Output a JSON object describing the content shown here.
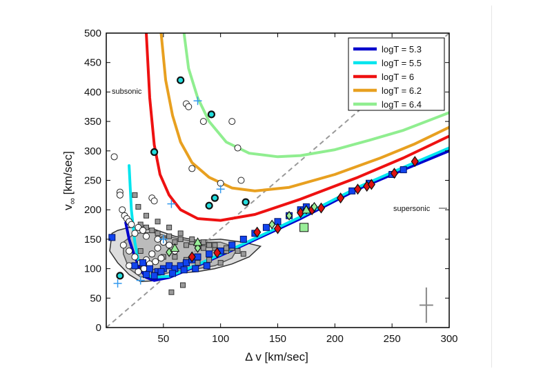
{
  "chart_data": {
    "type": "scatter",
    "title": "",
    "xlabel": "Δ v [km/sec]",
    "ylabel_main": "v",
    "ylabel_sub": "∞",
    "ylabel_unit": " [km/sec]",
    "xlim": [
      0,
      300
    ],
    "ylim": [
      0,
      500
    ],
    "xticks": [
      "50",
      "100",
      "150",
      "200",
      "250",
      "300"
    ],
    "yticks": [
      "0",
      "50",
      "100",
      "150",
      "200",
      "250",
      "300",
      "350",
      "400",
      "450",
      "500"
    ],
    "grid": false,
    "legend_position": "top-right",
    "annotations": {
      "subsonic": "subsonic",
      "supersonic": "supersonic"
    },
    "diagonal_line": {
      "style": "dashed",
      "color": "#999999",
      "x": [
        0,
        300
      ],
      "y": [
        0,
        500
      ]
    },
    "series": [
      {
        "name": "logT = 5.3",
        "color": "#0000cc",
        "x": [
          17,
          20,
          25,
          30,
          35,
          42,
          55,
          80,
          120,
          170,
          220,
          260,
          300
        ],
        "y": [
          178,
          150,
          120,
          98,
          85,
          80,
          85,
          105,
          140,
          185,
          235,
          268,
          300
        ]
      },
      {
        "name": "logT = 5.5",
        "color": "#00e5ee",
        "x": [
          20,
          22,
          25,
          28,
          33,
          40,
          55,
          80,
          120,
          170,
          220,
          260,
          300
        ],
        "y": [
          275,
          200,
          145,
          115,
          95,
          85,
          87,
          107,
          142,
          188,
          238,
          272,
          305
        ]
      },
      {
        "name": "logT = 6",
        "color": "#ee1111",
        "x": [
          35,
          38,
          42,
          47,
          55,
          65,
          80,
          100,
          130,
          170,
          220,
          260,
          300
        ],
        "y": [
          500,
          390,
          310,
          260,
          225,
          200,
          185,
          182,
          192,
          218,
          255,
          288,
          325
        ]
      },
      {
        "name": "logT = 6.2",
        "color": "#e8a020",
        "x": [
          48,
          52,
          58,
          65,
          75,
          90,
          110,
          130,
          160,
          200,
          240,
          270,
          300
        ],
        "y": [
          500,
          420,
          360,
          315,
          280,
          255,
          237,
          232,
          238,
          260,
          288,
          312,
          340
        ]
      },
      {
        "name": "logT = 6.4",
        "color": "#90ee90",
        "x": [
          68,
          72,
          80,
          90,
          105,
          125,
          150,
          170,
          200,
          230,
          260,
          300
        ],
        "y": [
          500,
          440,
          390,
          350,
          315,
          296,
          290,
          292,
          302,
          318,
          335,
          365
        ]
      }
    ],
    "contours": [
      {
        "fill": "#dddddd",
        "stroke": "#333333",
        "x": [
          3,
          5,
          10,
          20,
          40,
          60,
          80,
          100,
          120,
          135,
          125,
          110,
          95,
          80,
          60,
          45,
          30,
          20,
          10,
          3
        ],
        "y": [
          130,
          160,
          165,
          170,
          168,
          155,
          148,
          150,
          145,
          138,
          120,
          108,
          100,
          95,
          92,
          80,
          78,
          90,
          110,
          130
        ]
      },
      {
        "fill": "#bbbbbb",
        "stroke": "#555555",
        "x": [
          15,
          25,
          40,
          60,
          80,
          100,
          115,
          110,
          95,
          80,
          60,
          45,
          30,
          20,
          15
        ],
        "y": [
          145,
          160,
          162,
          152,
          145,
          145,
          135,
          118,
          105,
          100,
          96,
          88,
          86,
          100,
          125
        ]
      }
    ],
    "markers": {
      "open_circles": {
        "color": "#ffffff",
        "stroke": "#222222",
        "x": [
          7,
          12,
          12,
          14,
          16,
          18,
          20,
          22,
          25,
          28,
          32,
          35,
          40,
          42,
          45,
          50,
          55,
          60,
          70,
          72,
          75,
          85,
          100,
          110,
          115,
          118,
          15,
          20,
          25,
          30,
          35,
          40,
          45,
          20,
          28,
          33,
          38,
          43,
          48
        ],
        "y": [
          290,
          230,
          225,
          200,
          190,
          185,
          180,
          175,
          160,
          170,
          165,
          155,
          220,
          215,
          150,
          145,
          140,
          130,
          380,
          375,
          270,
          350,
          245,
          350,
          305,
          250,
          140,
          130,
          120,
          110,
          115,
          125,
          135,
          105,
          95,
          100,
          108,
          112,
          118
        ]
      },
      "cyan_circles": {
        "color": "#22dddd",
        "stroke": "#111111",
        "x": [
          12,
          42,
          65,
          92,
          90,
          95,
          122
        ],
        "y": [
          88,
          298,
          420,
          362,
          207,
          220,
          213
        ]
      },
      "gray_squares": {
        "color": "#999999",
        "stroke": "#333333",
        "x": [
          25,
          30,
          35,
          40,
          45,
          50,
          55,
          60,
          65,
          70,
          75,
          80,
          85,
          90,
          95,
          100,
          105,
          110,
          115,
          120,
          30,
          40,
          50,
          60,
          70,
          80,
          90,
          100,
          28,
          35,
          45,
          55,
          65,
          75,
          85,
          95,
          105,
          57,
          67,
          32,
          42
        ],
        "y": [
          225,
          175,
          170,
          165,
          160,
          150,
          155,
          145,
          150,
          140,
          145,
          140,
          135,
          140,
          135,
          130,
          130,
          135,
          130,
          125,
          130,
          125,
          120,
          120,
          115,
          110,
          115,
          110,
          205,
          190,
          180,
          170,
          160,
          150,
          145,
          140,
          135,
          60,
          72,
          100,
          95
        ]
      },
      "blue_squares": {
        "color": "#1144ee",
        "stroke": "#001166",
        "x": [
          5,
          25,
          32,
          38,
          45,
          50,
          55,
          60,
          65,
          70,
          75,
          80,
          90,
          100,
          110,
          120,
          130,
          140,
          150,
          160,
          170,
          175,
          215,
          230,
          250,
          260,
          35,
          42,
          48,
          58,
          68,
          78,
          88
        ],
        "y": [
          153,
          105,
          110,
          100,
          95,
          100,
          105,
          100,
          105,
          110,
          115,
          120,
          125,
          130,
          140,
          150,
          160,
          170,
          180,
          190,
          200,
          205,
          232,
          245,
          260,
          268,
          90,
          88,
          95,
          92,
          98,
          100,
          105
        ]
      },
      "red_diamonds": {
        "color": "#dd1111",
        "stroke": "#111111",
        "x": [
          75,
          97,
          132,
          150,
          170,
          180,
          188,
          205,
          220,
          228,
          232,
          252,
          270
        ],
        "y": [
          120,
          127,
          162,
          168,
          195,
          200,
          203,
          220,
          235,
          240,
          243,
          262,
          282
        ]
      },
      "green_diamonds": {
        "color": "#99ee99",
        "stroke": "#111111",
        "x": [
          55,
          80,
          145,
          160,
          175,
          182
        ],
        "y": [
          128,
          135,
          175,
          190,
          200,
          205
        ]
      },
      "green_triangles": {
        "color": "#99ee99",
        "stroke": "#111111",
        "x": [
          60,
          80,
          175
        ],
        "y": [
          135,
          145,
          200
        ]
      },
      "green_squares": {
        "color": "#99ee99",
        "stroke": "#111111",
        "x": [
          173
        ],
        "y": [
          170
        ]
      },
      "plus_signs": {
        "color": "#3399ee",
        "x": [
          10,
          30,
          50,
          57,
          80,
          100
        ],
        "y": [
          75,
          80,
          150,
          210,
          385,
          235
        ]
      }
    },
    "error_cross": {
      "x": 280,
      "y": 38,
      "xerr": 6,
      "yerr": 30
    }
  }
}
